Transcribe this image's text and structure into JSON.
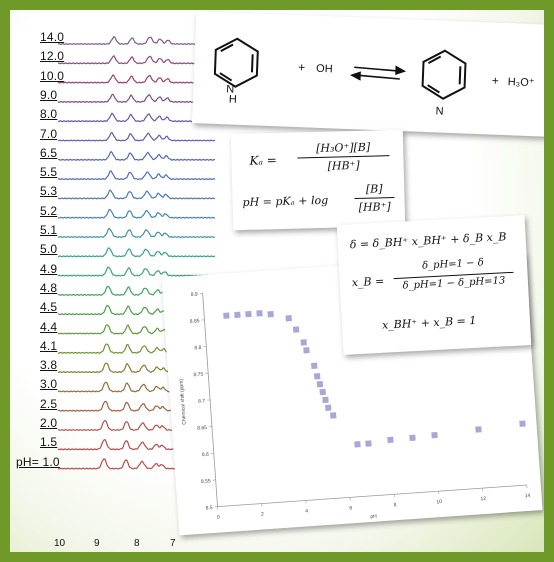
{
  "nmr_stack": {
    "ph_prefix": "pH=",
    "ph_values": [
      "14.0",
      "12.0",
      "10.0",
      "9.0",
      "8.0",
      "7.0",
      "6.5",
      "5.5",
      "5.3",
      "5.2",
      "5.1",
      "5.0",
      "4.9",
      "4.8",
      "4.5",
      "4.4",
      "4.1",
      "3.8",
      "3.0",
      "2.5",
      "2.0",
      "1.5",
      "1.0"
    ],
    "trace_colors": [
      "#7a5a8a",
      "#8a4b82",
      "#97436f",
      "#7d4a8c",
      "#6a55a3",
      "#5b5db0",
      "#5467b8",
      "#4c6fbc",
      "#4a78b8",
      "#4585ae",
      "#3f93a1",
      "#3aa08f",
      "#3aa77a",
      "#3ea55f",
      "#4aa04a",
      "#5c9a3c",
      "#6f9436",
      "#837f34",
      "#93703a",
      "#a3613f",
      "#b05545",
      "#b94c48",
      "#bf4a4a"
    ],
    "ppm_ticks": [
      "10",
      "9",
      "8",
      "7"
    ]
  },
  "reaction": {
    "plus1": "+",
    "water": "OH",
    "plus2": "+",
    "hydronium": "H₃O⁺",
    "h_label": "H"
  },
  "equation_card_1": {
    "ka_lhs": "Kₐ =",
    "ka_num": "[H₃O⁺][B]",
    "ka_den": "[HB⁺]",
    "ph_lhs": "pH = pKₐ + log",
    "ph_num": "[B]",
    "ph_den": "[HB⁺]"
  },
  "equation_card_2": {
    "line1": "δ = δ_BH⁺ x_BH⁺ + δ_B x_B",
    "xb_lhs": "x_B =",
    "xb_num": "δ_pH=1 − δ",
    "xb_den": "δ_pH=1 − δ_pH=13",
    "line3": "x_BH⁺ + x_B = 1"
  },
  "chart_data": {
    "type": "scatter",
    "xlabel": "pH",
    "ylabel": "Chemical shift (ppm)",
    "xlim": [
      0,
      14
    ],
    "ylim": [
      8.5,
      8.9
    ],
    "x_ticks": [
      "0",
      "2",
      "4",
      "6",
      "8",
      "10",
      "12",
      "14"
    ],
    "y_ticks": [
      "8.5",
      "8.55",
      "8.6",
      "8.65",
      "8.7",
      "8.75",
      "8.8",
      "8.85",
      "8.9"
    ],
    "points": [
      {
        "x": 1.0,
        "y": 8.855
      },
      {
        "x": 1.5,
        "y": 8.855
      },
      {
        "x": 2.0,
        "y": 8.855
      },
      {
        "x": 2.5,
        "y": 8.855
      },
      {
        "x": 3.0,
        "y": 8.852
      },
      {
        "x": 3.8,
        "y": 8.842
      },
      {
        "x": 4.1,
        "y": 8.82
      },
      {
        "x": 4.4,
        "y": 8.795
      },
      {
        "x": 4.5,
        "y": 8.78
      },
      {
        "x": 4.8,
        "y": 8.75
      },
      {
        "x": 4.9,
        "y": 8.73
      },
      {
        "x": 5.0,
        "y": 8.715
      },
      {
        "x": 5.1,
        "y": 8.7
      },
      {
        "x": 5.2,
        "y": 8.685
      },
      {
        "x": 5.3,
        "y": 8.67
      },
      {
        "x": 5.5,
        "y": 8.655
      },
      {
        "x": 6.5,
        "y": 8.598
      },
      {
        "x": 7.0,
        "y": 8.598
      },
      {
        "x": 8.0,
        "y": 8.602
      },
      {
        "x": 9.0,
        "y": 8.603
      },
      {
        "x": 10.0,
        "y": 8.605
      },
      {
        "x": 12.0,
        "y": 8.61
      },
      {
        "x": 14.0,
        "y": 8.615
      }
    ],
    "marker_color": "#a9a7d6"
  }
}
